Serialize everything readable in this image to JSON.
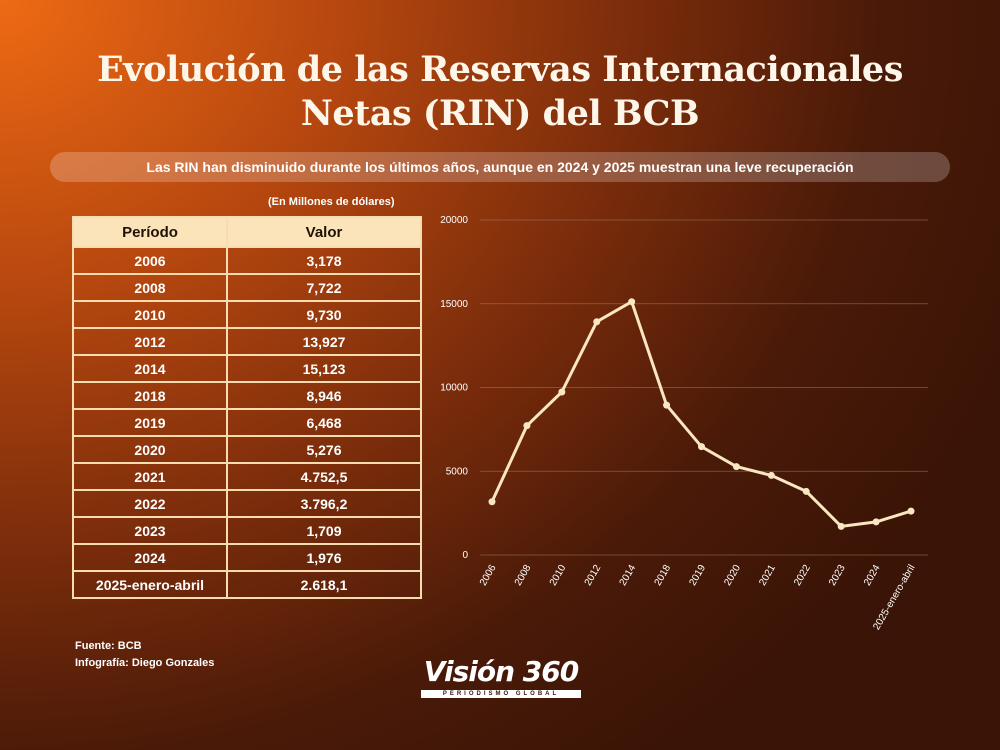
{
  "title_line1": "Evolución de las Reservas Internacionales",
  "title_line2": "Netas (RIN) del BCB",
  "subtitle": "Las RIN han disminuido durante los últimos años, aunque en 2024 y 2025 muestran una leve recuperación",
  "units": "(En Millones de dólares)",
  "table": {
    "headers": [
      "Período",
      "Valor"
    ],
    "rows": [
      [
        "2006",
        "3,178"
      ],
      [
        "2008",
        "7,722"
      ],
      [
        "2010",
        "9,730"
      ],
      [
        "2012",
        "13,927"
      ],
      [
        "2014",
        "15,123"
      ],
      [
        "2018",
        "8,946"
      ],
      [
        "2019",
        "6,468"
      ],
      [
        "2020",
        "5,276"
      ],
      [
        "2021",
        "4.752,5"
      ],
      [
        "2022",
        "3.796,2"
      ],
      [
        "2023",
        "1,709"
      ],
      [
        "2024",
        "1,976"
      ],
      [
        "2025-enero-abril",
        "2.618,1"
      ]
    ]
  },
  "footer": {
    "source": "Fuente: BCB",
    "credit": "Infografía: Diego Gonzales"
  },
  "logo": {
    "name": "Visión 360",
    "tagline": "PERIODISMO GLOBAL"
  },
  "colors": {
    "line": "#fbe6c2",
    "grid": "#a7866e",
    "table_header_bg": "#fbe3ba"
  },
  "chart_data": {
    "type": "line",
    "title": "",
    "xlabel": "",
    "ylabel": "",
    "categories": [
      "2006",
      "2008",
      "2010",
      "2012",
      "2014",
      "2018",
      "2019",
      "2020",
      "2021",
      "2022",
      "2023",
      "2024",
      "2025-enero-abril"
    ],
    "series": [
      {
        "values": [
          3178,
          7722,
          9730,
          13927,
          15123,
          8946,
          6468,
          5276,
          4752.5,
          3796.2,
          1709,
          1976,
          2618.1
        ]
      }
    ],
    "ylim": [
      0,
      20000
    ],
    "yticks": [
      0,
      5000,
      10000,
      15000,
      20000
    ],
    "grid": true,
    "legend": "none"
  }
}
